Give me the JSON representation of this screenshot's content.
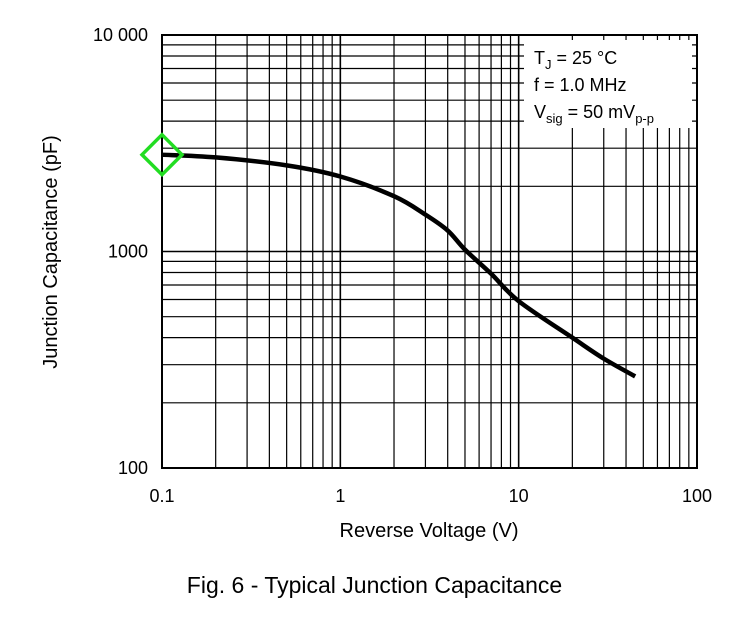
{
  "chart_data": {
    "type": "line",
    "title": "",
    "xlabel": "Reverse Voltage (V)",
    "ylabel": "Junction Capacitance (pF)",
    "x_scale": "log",
    "y_scale": "log",
    "xlim": [
      0.1,
      100
    ],
    "ylim": [
      100,
      10000
    ],
    "grid": true,
    "x_ticks": [
      "0.1",
      "1",
      "10",
      "100"
    ],
    "y_ticks": [
      "100",
      "1000",
      "10 000"
    ],
    "series": [
      {
        "x": [
          0.1,
          0.2,
          0.5,
          1,
          2,
          3,
          4,
          5,
          7,
          10,
          20,
          30,
          45
        ],
        "y": [
          2800,
          2720,
          2500,
          2220,
          1800,
          1480,
          1250,
          1020,
          790,
          590,
          400,
          320,
          265
        ],
        "color": "#000000"
      }
    ],
    "legend": {
      "position": "top-right",
      "lines": [
        {
          "main": "T",
          "sub": "J",
          "rest": " = 25 °C",
          "sub2": ""
        },
        {
          "main": "f = 1.0 MHz",
          "sub": "",
          "rest": "",
          "sub2": ""
        },
        {
          "main": "V",
          "sub": "sig",
          "rest": " = 50 mV",
          "sub2": "p-p"
        }
      ]
    },
    "marker": {
      "x": 0.1,
      "y": 2800,
      "shape": "diamond",
      "color": "#22dd22"
    }
  },
  "caption": "Fig. 6 - Typical Junction Capacitance"
}
